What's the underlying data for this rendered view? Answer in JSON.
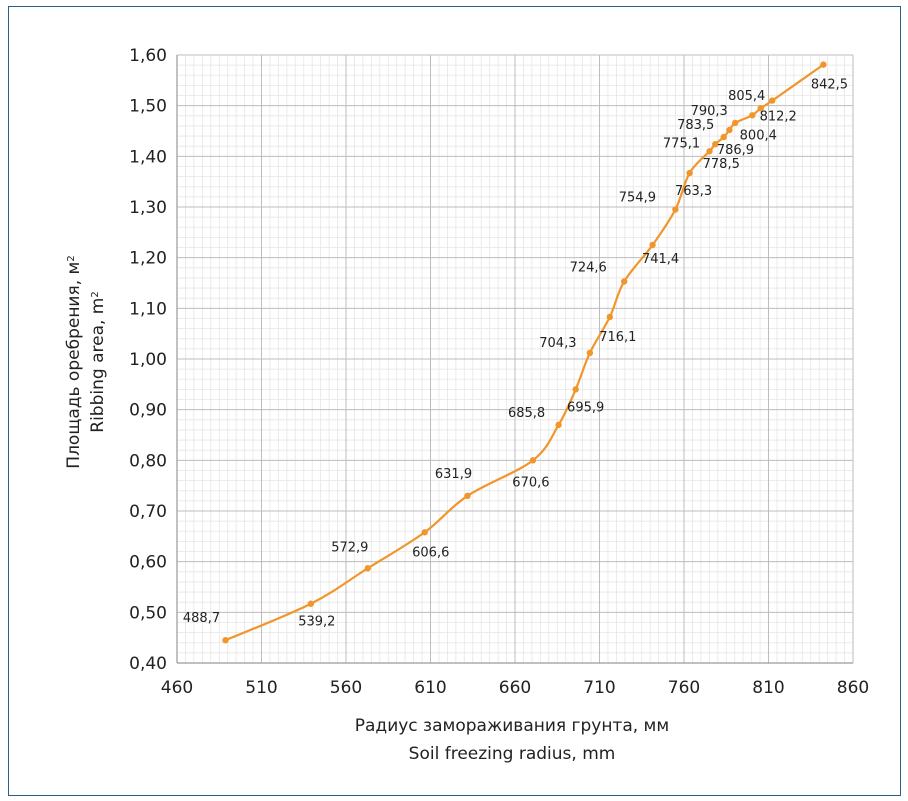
{
  "chart_data": {
    "type": "line",
    "title": "",
    "xlabel_ru": "Радиус замораживания грунта, мм",
    "xlabel_en": "Soil freezing radius, mm",
    "ylabel_ru": "Площадь оребрения, м",
    "ylabel_en": "Ribbing area, m",
    "ylabel_exp": "2",
    "xlim": [
      460,
      860
    ],
    "ylim": [
      0.4,
      1.6
    ],
    "x_ticks": [
      "460",
      "510",
      "560",
      "610",
      "660",
      "710",
      "760",
      "810",
      "860"
    ],
    "y_ticks": [
      "0,40",
      "0,50",
      "0,60",
      "0,70",
      "0,80",
      "0,90",
      "1,00",
      "1,10",
      "1,20",
      "1,30",
      "1,40",
      "1,50",
      "1,60"
    ],
    "grid": true,
    "line_color": "#f0962b",
    "series": [
      {
        "points": [
          {
            "x": 488.7,
            "y": 0.445,
            "label": "488,7"
          },
          {
            "x": 539.2,
            "y": 0.517,
            "label": "539,2"
          },
          {
            "x": 572.9,
            "y": 0.587,
            "label": "572,9"
          },
          {
            "x": 606.6,
            "y": 0.658,
            "label": "606,6"
          },
          {
            "x": 631.9,
            "y": 0.73,
            "label": "631,9"
          },
          {
            "x": 670.6,
            "y": 0.8,
            "label": "670,6"
          },
          {
            "x": 685.8,
            "y": 0.87,
            "label": "685,8"
          },
          {
            "x": 695.9,
            "y": 0.94,
            "label": "695,9"
          },
          {
            "x": 704.3,
            "y": 1.012,
            "label": "704,3"
          },
          {
            "x": 716.1,
            "y": 1.083,
            "label": "716,1"
          },
          {
            "x": 724.6,
            "y": 1.153,
            "label": "724,6"
          },
          {
            "x": 741.4,
            "y": 1.225,
            "label": "741,4"
          },
          {
            "x": 754.9,
            "y": 1.295,
            "label": "754,9"
          },
          {
            "x": 763.3,
            "y": 1.367,
            "label": "763,3"
          },
          {
            "x": 775.1,
            "y": 1.41,
            "label": "775,1"
          },
          {
            "x": 778.5,
            "y": 1.424,
            "label": "778,5"
          },
          {
            "x": 783.5,
            "y": 1.438,
            "label": "783,5"
          },
          {
            "x": 786.9,
            "y": 1.452,
            "label": "786,9"
          },
          {
            "x": 790.3,
            "y": 1.466,
            "label": "790,3"
          },
          {
            "x": 800.4,
            "y": 1.481,
            "label": "800,4"
          },
          {
            "x": 805.4,
            "y": 1.495,
            "label": "805,4"
          },
          {
            "x": 812.2,
            "y": 1.51,
            "label": "812,2"
          },
          {
            "x": 842.5,
            "y": 1.581,
            "label": "842,5"
          }
        ]
      }
    ]
  }
}
